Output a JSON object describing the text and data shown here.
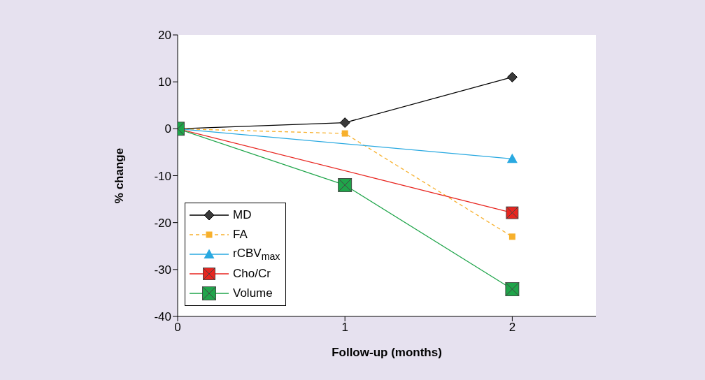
{
  "chart_data": {
    "type": "line",
    "xlabel": "Follow-up (months)",
    "ylabel": "% change",
    "x": [
      0,
      1,
      2
    ],
    "xlim": [
      0,
      2.5
    ],
    "xticks": [
      0,
      1,
      2
    ],
    "ylim": [
      -40,
      20
    ],
    "yticks": [
      -40,
      -30,
      -20,
      -10,
      0,
      10,
      20
    ],
    "grid": false,
    "legend": "bottom left",
    "series": [
      {
        "name": "MD",
        "color": "#000000",
        "values": [
          0,
          1.3,
          11
        ],
        "marker": "diamond",
        "line_style": "solid"
      },
      {
        "name": "FA",
        "color": "#f7b02c",
        "values": [
          0,
          -1,
          -23
        ],
        "marker": "square",
        "line_style": "dashed"
      },
      {
        "name": "rCBV$_{max}$",
        "color": "#29a9e1",
        "values": [
          0,
          null,
          -6.4
        ],
        "marker": "triangle",
        "line_style": "solid"
      },
      {
        "name": "Cho/Cr",
        "color": "#e8251f",
        "values": [
          0,
          null,
          -17.9
        ],
        "marker": "square",
        "line_style": "solid"
      },
      {
        "name": "Volume",
        "color": "#1fa54a",
        "values": [
          0,
          -12,
          -34.2
        ],
        "marker": "square",
        "line_style": "solid"
      }
    ]
  }
}
